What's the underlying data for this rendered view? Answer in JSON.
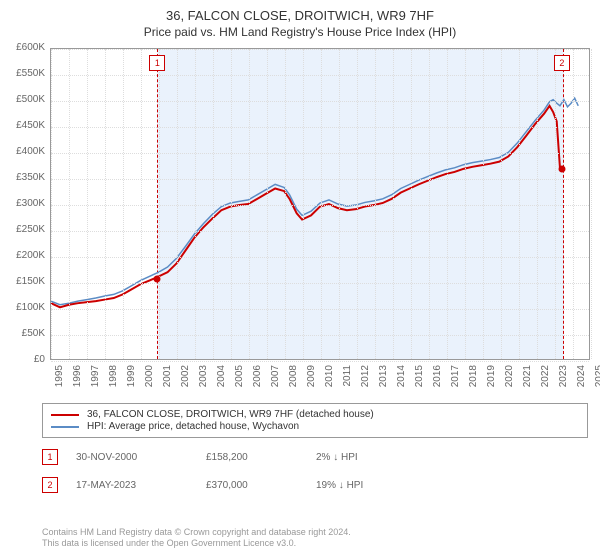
{
  "title": "36, FALCON CLOSE, DROITWICH, WR9 7HF",
  "subtitle": "Price paid vs. HM Land Registry's House Price Index (HPI)",
  "chart": {
    "type": "line",
    "background_color": "#ffffff",
    "grid_color": "#dddddd",
    "axis_color": "#999999",
    "label_color": "#666666",
    "label_fontsize": 10,
    "title_fontsize": 13,
    "subtitle_fontsize": 12,
    "ylim": [
      0,
      600000
    ],
    "ytick_step": 50000,
    "yticks": [
      "£0",
      "£50K",
      "£100K",
      "£150K",
      "£200K",
      "£250K",
      "£300K",
      "£350K",
      "£400K",
      "£450K",
      "£500K",
      "£550K",
      "£600K"
    ],
    "xlim": [
      1995,
      2025
    ],
    "xtick_step": 1,
    "xticks": [
      "1995",
      "1996",
      "1997",
      "1998",
      "1999",
      "2000",
      "2001",
      "2002",
      "2003",
      "2004",
      "2005",
      "2006",
      "2007",
      "2008",
      "2009",
      "2010",
      "2011",
      "2012",
      "2013",
      "2014",
      "2015",
      "2016",
      "2017",
      "2018",
      "2019",
      "2020",
      "2021",
      "2022",
      "2023",
      "2024",
      "2025"
    ],
    "shaded_region": {
      "x_start": 2000.91,
      "x_end": 2023.38,
      "fill_color": "#eaf2fc",
      "border_color": "#cc0000"
    },
    "series": [
      {
        "name": "36, FALCON CLOSE, DROITWICH, WR9 7HF (detached house)",
        "color": "#cc0000",
        "line_width": 2,
        "values": [
          [
            1995.0,
            108
          ],
          [
            1995.5,
            100
          ],
          [
            1996.0,
            105
          ],
          [
            1996.5,
            108
          ],
          [
            1997.0,
            110
          ],
          [
            1997.5,
            112
          ],
          [
            1998.0,
            115
          ],
          [
            1998.5,
            118
          ],
          [
            1999.0,
            125
          ],
          [
            1999.5,
            135
          ],
          [
            2000.0,
            145
          ],
          [
            2000.5,
            152
          ],
          [
            2000.91,
            158.2
          ],
          [
            2001.5,
            168
          ],
          [
            2002.0,
            185
          ],
          [
            2002.5,
            210
          ],
          [
            2003.0,
            235
          ],
          [
            2003.5,
            255
          ],
          [
            2004.0,
            272
          ],
          [
            2004.5,
            288
          ],
          [
            2005.0,
            295
          ],
          [
            2005.5,
            298
          ],
          [
            2006.0,
            300
          ],
          [
            2006.5,
            310
          ],
          [
            2007.0,
            320
          ],
          [
            2007.5,
            330
          ],
          [
            2008.0,
            325
          ],
          [
            2008.3,
            310
          ],
          [
            2008.7,
            282
          ],
          [
            2009.0,
            270
          ],
          [
            2009.5,
            278
          ],
          [
            2010.0,
            295
          ],
          [
            2010.5,
            300
          ],
          [
            2011.0,
            292
          ],
          [
            2011.5,
            288
          ],
          [
            2012.0,
            290
          ],
          [
            2012.5,
            295
          ],
          [
            2013.0,
            298
          ],
          [
            2013.5,
            302
          ],
          [
            2014.0,
            310
          ],
          [
            2014.5,
            322
          ],
          [
            2015.0,
            330
          ],
          [
            2015.5,
            338
          ],
          [
            2016.0,
            345
          ],
          [
            2016.5,
            352
          ],
          [
            2017.0,
            358
          ],
          [
            2017.5,
            362
          ],
          [
            2018.0,
            368
          ],
          [
            2018.5,
            372
          ],
          [
            2019.0,
            375
          ],
          [
            2019.5,
            378
          ],
          [
            2020.0,
            382
          ],
          [
            2020.5,
            392
          ],
          [
            2021.0,
            410
          ],
          [
            2021.5,
            432
          ],
          [
            2022.0,
            455
          ],
          [
            2022.5,
            475
          ],
          [
            2022.8,
            490
          ],
          [
            2023.0,
            478
          ],
          [
            2023.2,
            460
          ],
          [
            2023.38,
            370
          ]
        ]
      },
      {
        "name": "HPI: Average price, detached house, Wychavon",
        "color": "#5b8cc5",
        "line_width": 1.5,
        "values": [
          [
            1995.0,
            112
          ],
          [
            1995.5,
            105
          ],
          [
            1996.0,
            108
          ],
          [
            1996.5,
            112
          ],
          [
            1997.0,
            115
          ],
          [
            1997.5,
            118
          ],
          [
            1998.0,
            122
          ],
          [
            1998.5,
            125
          ],
          [
            1999.0,
            132
          ],
          [
            1999.5,
            142
          ],
          [
            2000.0,
            152
          ],
          [
            2000.5,
            160
          ],
          [
            2001.0,
            168
          ],
          [
            2001.5,
            178
          ],
          [
            2002.0,
            195
          ],
          [
            2002.5,
            218
          ],
          [
            2003.0,
            242
          ],
          [
            2003.5,
            262
          ],
          [
            2004.0,
            280
          ],
          [
            2004.5,
            295
          ],
          [
            2005.0,
            302
          ],
          [
            2005.5,
            305
          ],
          [
            2006.0,
            308
          ],
          [
            2006.5,
            318
          ],
          [
            2007.0,
            328
          ],
          [
            2007.5,
            338
          ],
          [
            2008.0,
            332
          ],
          [
            2008.3,
            318
          ],
          [
            2008.7,
            290
          ],
          [
            2009.0,
            278
          ],
          [
            2009.5,
            286
          ],
          [
            2010.0,
            302
          ],
          [
            2010.5,
            308
          ],
          [
            2011.0,
            300
          ],
          [
            2011.5,
            296
          ],
          [
            2012.0,
            298
          ],
          [
            2012.5,
            303
          ],
          [
            2013.0,
            306
          ],
          [
            2013.5,
            310
          ],
          [
            2014.0,
            318
          ],
          [
            2014.5,
            330
          ],
          [
            2015.0,
            338
          ],
          [
            2015.5,
            346
          ],
          [
            2016.0,
            353
          ],
          [
            2016.5,
            360
          ],
          [
            2017.0,
            366
          ],
          [
            2017.5,
            370
          ],
          [
            2018.0,
            376
          ],
          [
            2018.5,
            380
          ],
          [
            2019.0,
            383
          ],
          [
            2019.5,
            386
          ],
          [
            2020.0,
            390
          ],
          [
            2020.5,
            400
          ],
          [
            2021.0,
            418
          ],
          [
            2021.5,
            440
          ],
          [
            2022.0,
            462
          ],
          [
            2022.5,
            482
          ],
          [
            2022.8,
            498
          ],
          [
            2023.0,
            502
          ],
          [
            2023.2,
            495
          ],
          [
            2023.38,
            490
          ],
          [
            2023.6,
            502
          ],
          [
            2023.8,
            488
          ],
          [
            2024.0,
            495
          ],
          [
            2024.2,
            505
          ],
          [
            2024.4,
            490
          ]
        ]
      }
    ],
    "markers": [
      {
        "id": "1",
        "x": 2000.91,
        "y": 158.2,
        "color": "#cc0000"
      },
      {
        "id": "2",
        "x": 2023.38,
        "y": 370,
        "color": "#cc0000"
      }
    ]
  },
  "legend": {
    "border_color": "#999999",
    "fontsize": 10,
    "items": [
      {
        "label": "36, FALCON CLOSE, DROITWICH, WR9 7HF (detached house)",
        "color": "#cc0000"
      },
      {
        "label": "HPI: Average price, detached house, Wychavon",
        "color": "#5b8cc5"
      }
    ]
  },
  "sales": [
    {
      "id": "1",
      "date": "30-NOV-2000",
      "price": "£158,200",
      "diff": "2% ↓ HPI"
    },
    {
      "id": "2",
      "date": "17-MAY-2023",
      "price": "£370,000",
      "diff": "19% ↓ HPI"
    }
  ],
  "footer1": "Contains HM Land Registry data © Crown copyright and database right 2024.",
  "footer2": "This data is licensed under the Open Government Licence v3.0."
}
